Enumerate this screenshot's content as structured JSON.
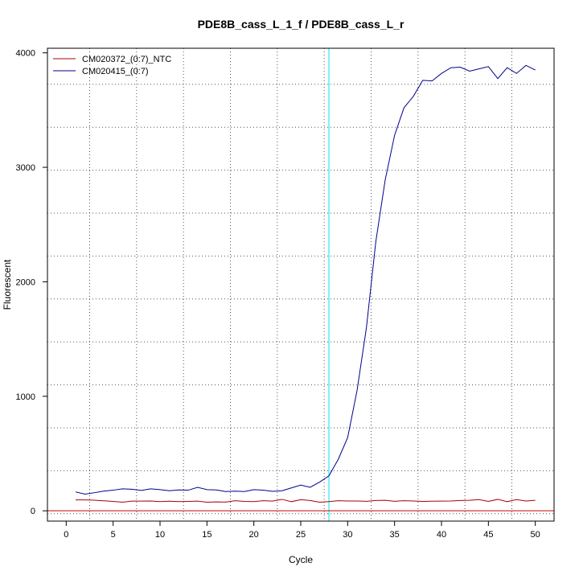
{
  "chart_data": {
    "type": "line",
    "title": "PDE8B_cass_L_1_f / PDE8B_cass_L_r",
    "xlabel": "Cycle",
    "ylabel": "Fluorescent",
    "xlim": [
      -2,
      52
    ],
    "ylim": [
      -90,
      4040
    ],
    "x_ticks": [
      0,
      5,
      10,
      15,
      20,
      25,
      30,
      35,
      40,
      45,
      50
    ],
    "x_tick_labels": [
      "0",
      "5",
      "10",
      "15",
      "20",
      "25",
      "30",
      "35",
      "40",
      "45",
      "50"
    ],
    "y_ticks": [
      0,
      1000,
      2000,
      3000,
      4000
    ],
    "y_tick_labels": [
      "0",
      "1000",
      "2000",
      "3000",
      "4000"
    ],
    "grid": "dotted",
    "grid_x": [
      2.5,
      7.5,
      12.5,
      17.5,
      22.5,
      27.5,
      32.5,
      37.5,
      42.5,
      47.5
    ],
    "grid_y": [
      -25,
      350,
      725,
      1100,
      1475,
      1850,
      2225,
      2600,
      2975,
      3350,
      3725
    ],
    "threshold": {
      "y": 0,
      "color": "#cc0000"
    },
    "cycle_marker": {
      "x": 28,
      "color": "#00e5ee"
    },
    "legend_position": "top-left",
    "series": [
      {
        "name": "CM020372_(0:7)_NTC",
        "color": "#aa0000",
        "x": [
          1,
          2,
          3,
          4,
          5,
          6,
          7,
          8,
          9,
          10,
          11,
          12,
          13,
          14,
          15,
          16,
          17,
          18,
          19,
          20,
          21,
          22,
          23,
          24,
          25,
          26,
          27,
          28,
          29,
          30,
          31,
          32,
          33,
          34,
          35,
          36,
          37,
          38,
          39,
          40,
          41,
          42,
          43,
          44,
          45,
          46,
          47,
          48,
          49,
          50
        ],
        "values": [
          95,
          95,
          93,
          87,
          82,
          75,
          85,
          85,
          86,
          80,
          84,
          80,
          82,
          85,
          75,
          78,
          76,
          88,
          82,
          80,
          88,
          85,
          100,
          80,
          97,
          90,
          75,
          80,
          88,
          86,
          86,
          83,
          90,
          92,
          83,
          88,
          86,
          82,
          84,
          85,
          86,
          90,
          92,
          98,
          82,
          100,
          80,
          98,
          86,
          92
        ]
      },
      {
        "name": "CM020415_(0:7)",
        "color": "#00008b",
        "x": [
          1,
          2,
          3,
          4,
          5,
          6,
          7,
          8,
          9,
          10,
          11,
          12,
          13,
          14,
          15,
          16,
          17,
          18,
          19,
          20,
          21,
          22,
          23,
          24,
          25,
          26,
          27,
          28,
          29,
          30,
          31,
          32,
          33,
          34,
          35,
          36,
          37,
          38,
          39,
          40,
          41,
          42,
          43,
          44,
          45,
          46,
          47,
          48,
          49,
          50
        ],
        "values": [
          165,
          145,
          158,
          172,
          180,
          192,
          188,
          178,
          192,
          185,
          175,
          182,
          180,
          205,
          185,
          182,
          168,
          172,
          168,
          185,
          180,
          170,
          175,
          200,
          225,
          205,
          250,
          305,
          450,
          640,
          1050,
          1600,
          2350,
          2890,
          3280,
          3520,
          3620,
          3760,
          3755,
          3820,
          3870,
          3875,
          3840,
          3860,
          3880,
          3775,
          3870,
          3820,
          3890,
          3850
        ]
      }
    ]
  }
}
